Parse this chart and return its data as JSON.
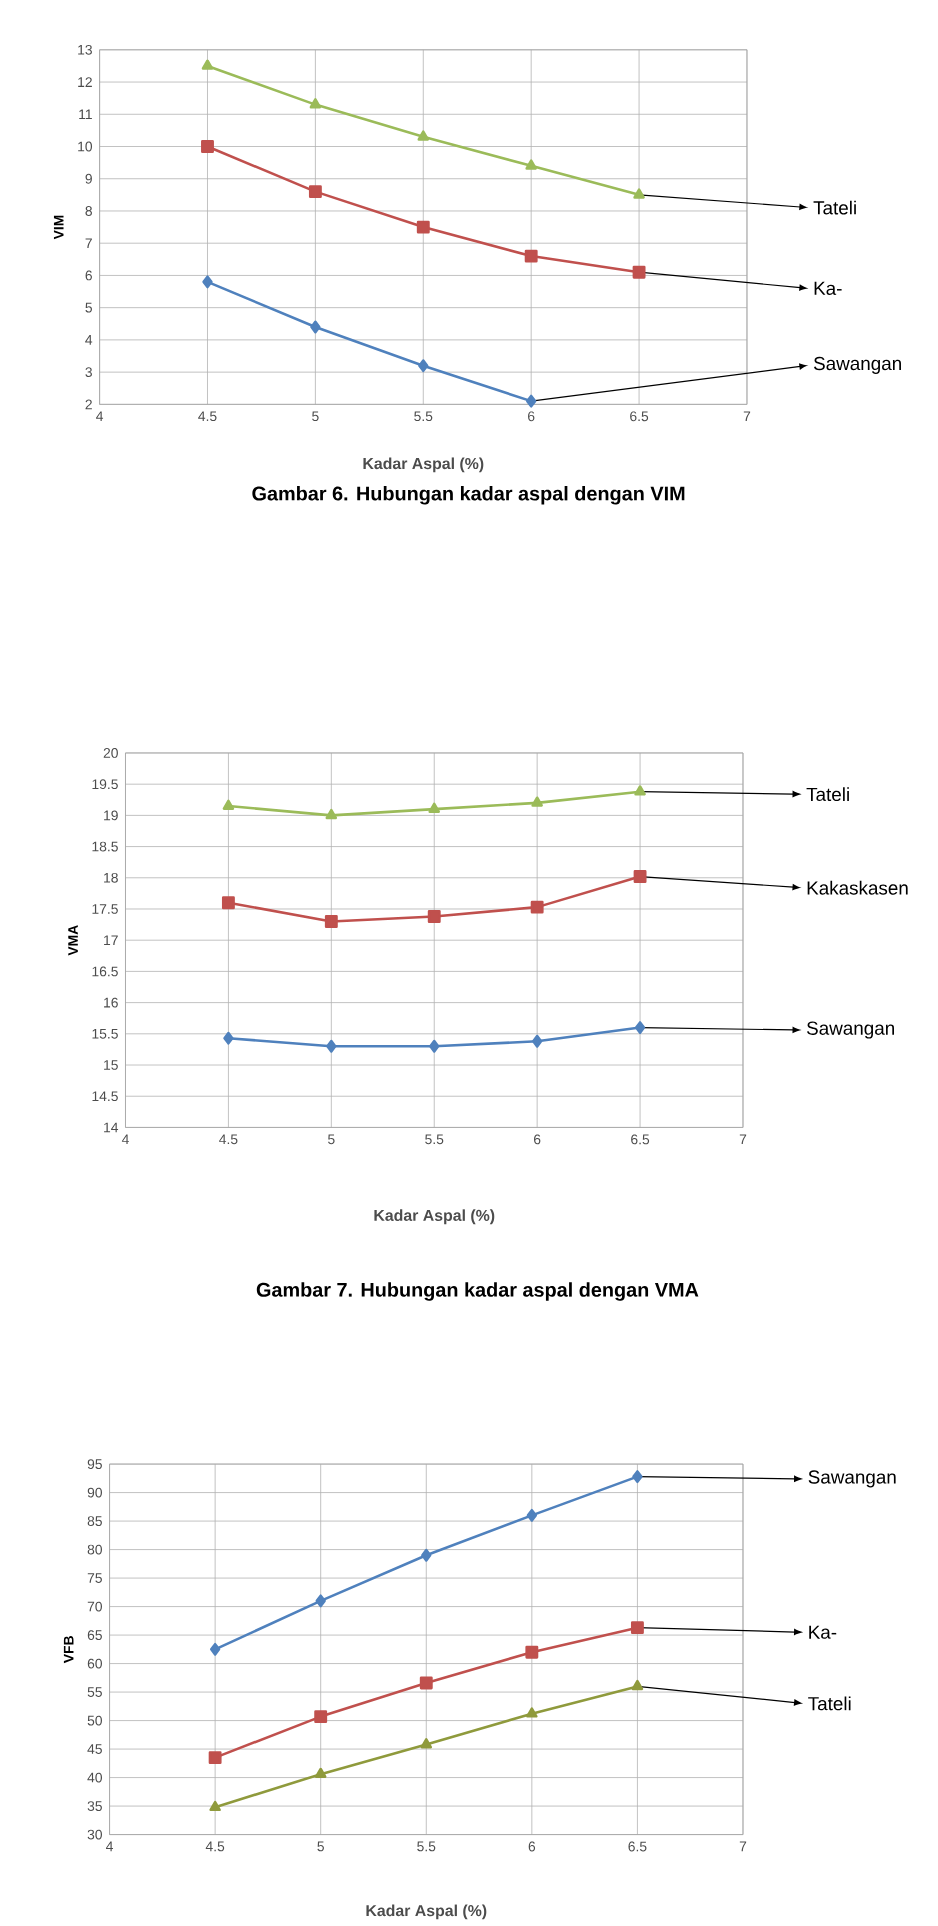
{
  "chart_data": [
    {
      "type": "line",
      "title": "Gambar 6. Hubungan kadar aspal dengan VIM",
      "xlabel": "Kadar Aspal (%)",
      "ylabel": "VIM",
      "x": [
        4.5,
        5,
        5.5,
        6,
        6.5
      ],
      "xlim": [
        4,
        7
      ],
      "xticks": [
        4,
        4.5,
        5,
        5.5,
        6,
        6.5,
        7
      ],
      "ylim": [
        2,
        13
      ],
      "yticks": [
        2,
        3,
        4,
        5,
        6,
        7,
        8,
        9,
        10,
        11,
        12,
        13
      ],
      "grid": true,
      "series": [
        {
          "name": "Tateli",
          "color": "#9bbb59",
          "marker": "triangle",
          "values": [
            12.5,
            11.3,
            10.3,
            9.4,
            8.5
          ]
        },
        {
          "name": "Ka-",
          "color": "#c0504d",
          "marker": "square",
          "values": [
            10,
            8.6,
            7.5,
            6.6,
            6.1
          ]
        },
        {
          "name": "Sawangan",
          "color": "#4f81bd",
          "marker": "diamond",
          "values": [
            5.8,
            4.4,
            3.2,
            2.1,
            null
          ]
        }
      ]
    },
    {
      "type": "line",
      "title": "Gambar 7. Hubungan kadar aspal dengan VMA",
      "xlabel": "Kadar Aspal (%)",
      "ylabel": "VMA",
      "x": [
        4.5,
        5,
        5.5,
        6,
        6.5
      ],
      "xlim": [
        4,
        7
      ],
      "xticks": [
        4,
        4.5,
        5,
        5.5,
        6,
        6.5,
        7
      ],
      "ylim": [
        14,
        20
      ],
      "yticks": [
        14,
        14.5,
        15,
        15.5,
        16,
        16.5,
        17,
        17.5,
        18,
        18.5,
        19,
        19.5,
        20
      ],
      "grid": true,
      "series": [
        {
          "name": "Tateli",
          "color": "#9bbb59",
          "marker": "triangle",
          "values": [
            19.15,
            19.0,
            19.1,
            19.2,
            19.38
          ]
        },
        {
          "name": "Kakaskasen",
          "color": "#c0504d",
          "marker": "square",
          "values": [
            17.6,
            17.3,
            17.38,
            17.53,
            18.02
          ]
        },
        {
          "name": "Sawangan",
          "color": "#4f81bd",
          "marker": "diamond",
          "values": [
            15.43,
            15.3,
            15.3,
            15.38,
            15.6
          ]
        }
      ]
    },
    {
      "type": "line",
      "xlabel": "Kadar Aspal (%)",
      "ylabel": "VFB",
      "x": [
        4.5,
        5,
        5.5,
        6,
        6.5
      ],
      "xlim": [
        4,
        7
      ],
      "xticks": [
        4,
        4.5,
        5,
        5.5,
        6,
        6.5,
        7
      ],
      "ylim": [
        30,
        95
      ],
      "yticks": [
        30,
        35,
        40,
        45,
        50,
        55,
        60,
        65,
        70,
        75,
        80,
        85,
        90,
        95
      ],
      "grid": true,
      "series": [
        {
          "name": "Sawangan",
          "color": "#4f81bd",
          "marker": "diamond",
          "values": [
            62.5,
            71,
            79,
            86,
            92.8
          ]
        },
        {
          "name": "Ka-",
          "color": "#c0504d",
          "marker": "square",
          "values": [
            43.5,
            50.7,
            56.6,
            62,
            66.3
          ]
        },
        {
          "name": "Tateli",
          "color": "#8f9a3c",
          "marker": "triangle",
          "values": [
            34.8,
            40.6,
            45.8,
            51.2,
            56
          ]
        }
      ]
    }
  ]
}
